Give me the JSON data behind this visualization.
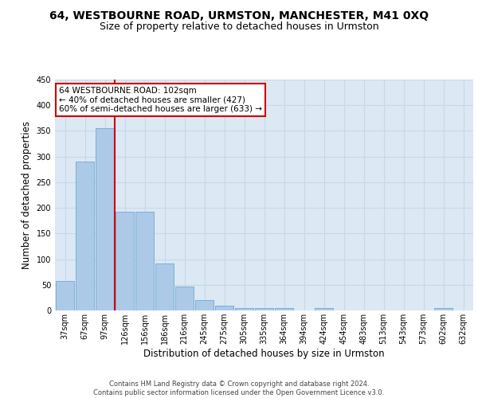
{
  "title": "64, WESTBOURNE ROAD, URMSTON, MANCHESTER, M41 0XQ",
  "subtitle": "Size of property relative to detached houses in Urmston",
  "xlabel": "Distribution of detached houses by size in Urmston",
  "ylabel": "Number of detached properties",
  "categories": [
    "37sqm",
    "67sqm",
    "97sqm",
    "126sqm",
    "156sqm",
    "186sqm",
    "216sqm",
    "245sqm",
    "275sqm",
    "305sqm",
    "335sqm",
    "364sqm",
    "394sqm",
    "424sqm",
    "454sqm",
    "483sqm",
    "513sqm",
    "543sqm",
    "573sqm",
    "602sqm",
    "632sqm"
  ],
  "values": [
    58,
    290,
    355,
    192,
    192,
    92,
    47,
    20,
    9,
    5,
    5,
    5,
    0,
    5,
    0,
    0,
    0,
    0,
    0,
    5,
    0
  ],
  "bar_color": "#adc9e8",
  "bar_edge_color": "#6baad4",
  "vline_x": 2.5,
  "vline_color": "#cc0000",
  "annotation_text": "64 WESTBOURNE ROAD: 102sqm\n← 40% of detached houses are smaller (427)\n60% of semi-detached houses are larger (633) →",
  "annotation_box_color": "white",
  "annotation_box_edge_color": "#cc0000",
  "ylim": [
    0,
    450
  ],
  "yticks": [
    0,
    50,
    100,
    150,
    200,
    250,
    300,
    350,
    400,
    450
  ],
  "grid_color": "#c8d8e8",
  "background_color": "#dce8f4",
  "footer_text": "Contains HM Land Registry data © Crown copyright and database right 2024.\nContains public sector information licensed under the Open Government Licence v3.0.",
  "title_fontsize": 10,
  "subtitle_fontsize": 9,
  "xlabel_fontsize": 8.5,
  "ylabel_fontsize": 8.5,
  "annot_fontsize": 7.5,
  "tick_fontsize": 7.0,
  "footer_fontsize": 6.0
}
